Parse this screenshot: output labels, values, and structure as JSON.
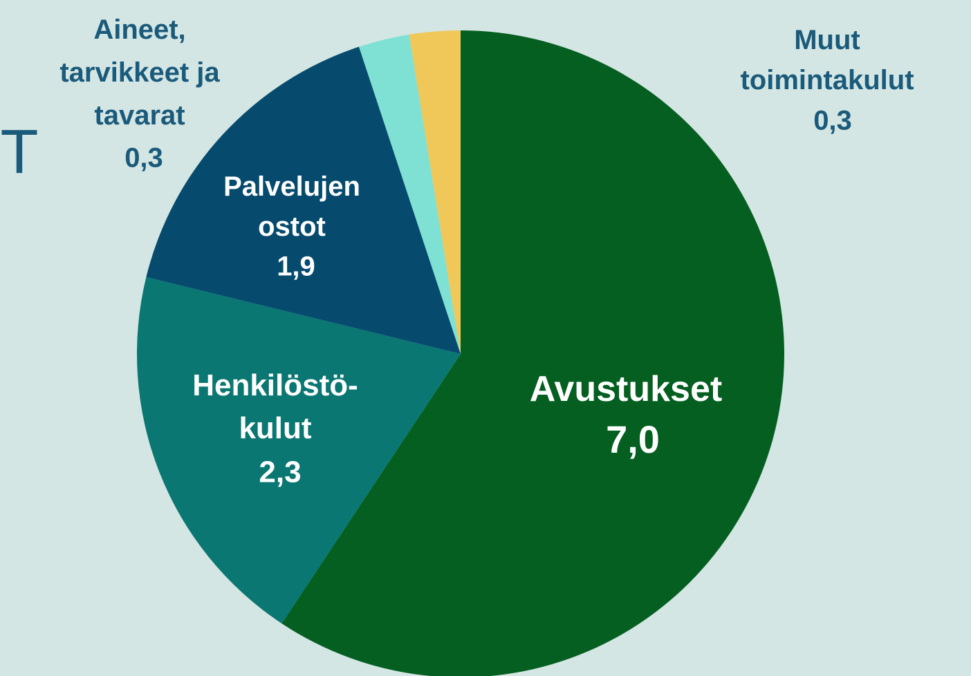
{
  "chart_data": {
    "type": "pie",
    "categories": [
      "Avustukset",
      "Henkilöstö-\nkulut",
      "Palvelujen\nostot",
      "Aineet,\ntarvikkeet ja\ntavarat",
      "Muut\ntoimintakulut"
    ],
    "values": [
      7.0,
      2.3,
      1.9,
      0.3,
      0.3
    ],
    "value_labels": [
      "7,0",
      "2,3",
      "1,9",
      "0,3",
      "0,3"
    ],
    "colors": [
      "#045f20",
      "#0a7772",
      "#064b6e",
      "#7fe0d4",
      "#f0c85a"
    ],
    "edge_text": "T"
  }
}
